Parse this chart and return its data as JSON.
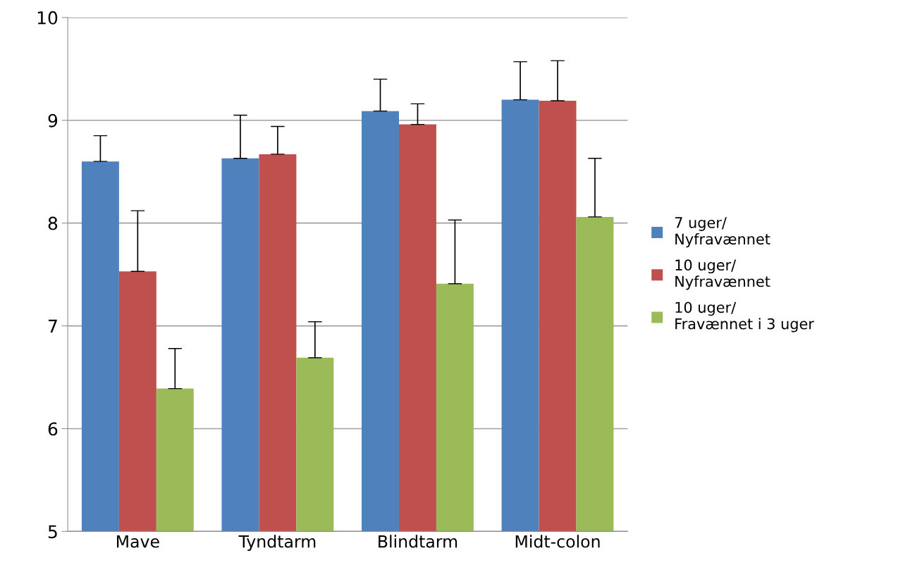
{
  "chart_data": {
    "type": "bar",
    "categories": [
      "Mave",
      "Tyndtarm",
      "Blindtarm",
      "Midt-colon"
    ],
    "series": [
      {
        "name": "7 uger/\nNyfravænnet",
        "color": "#4f81bd",
        "values": [
          8.6,
          8.63,
          9.09,
          9.2
        ],
        "errors": [
          [
            8.6,
            8.85
          ],
          [
            8.63,
            9.05
          ],
          [
            9.09,
            9.4
          ],
          [
            9.2,
            9.57
          ]
        ]
      },
      {
        "name": "10 uger/\nNyfravænnet",
        "color": "#c0504d",
        "values": [
          7.53,
          8.67,
          8.96,
          9.19
        ],
        "errors": [
          [
            7.53,
            8.12
          ],
          [
            8.67,
            8.94
          ],
          [
            8.96,
            9.16
          ],
          [
            9.19,
            9.58
          ]
        ]
      },
      {
        "name": "10 uger/\nFravænnet i 3 uger",
        "color": "#9bbb59",
        "values": [
          6.39,
          6.69,
          7.41,
          8.06
        ],
        "errors": [
          [
            6.39,
            6.78
          ],
          [
            6.69,
            7.04
          ],
          [
            7.41,
            8.03
          ],
          [
            8.06,
            8.63
          ]
        ]
      }
    ],
    "ylim": [
      5,
      10
    ],
    "yticks": [
      5,
      6,
      7,
      8,
      9,
      10
    ],
    "grid": "y",
    "legend": "right"
  }
}
